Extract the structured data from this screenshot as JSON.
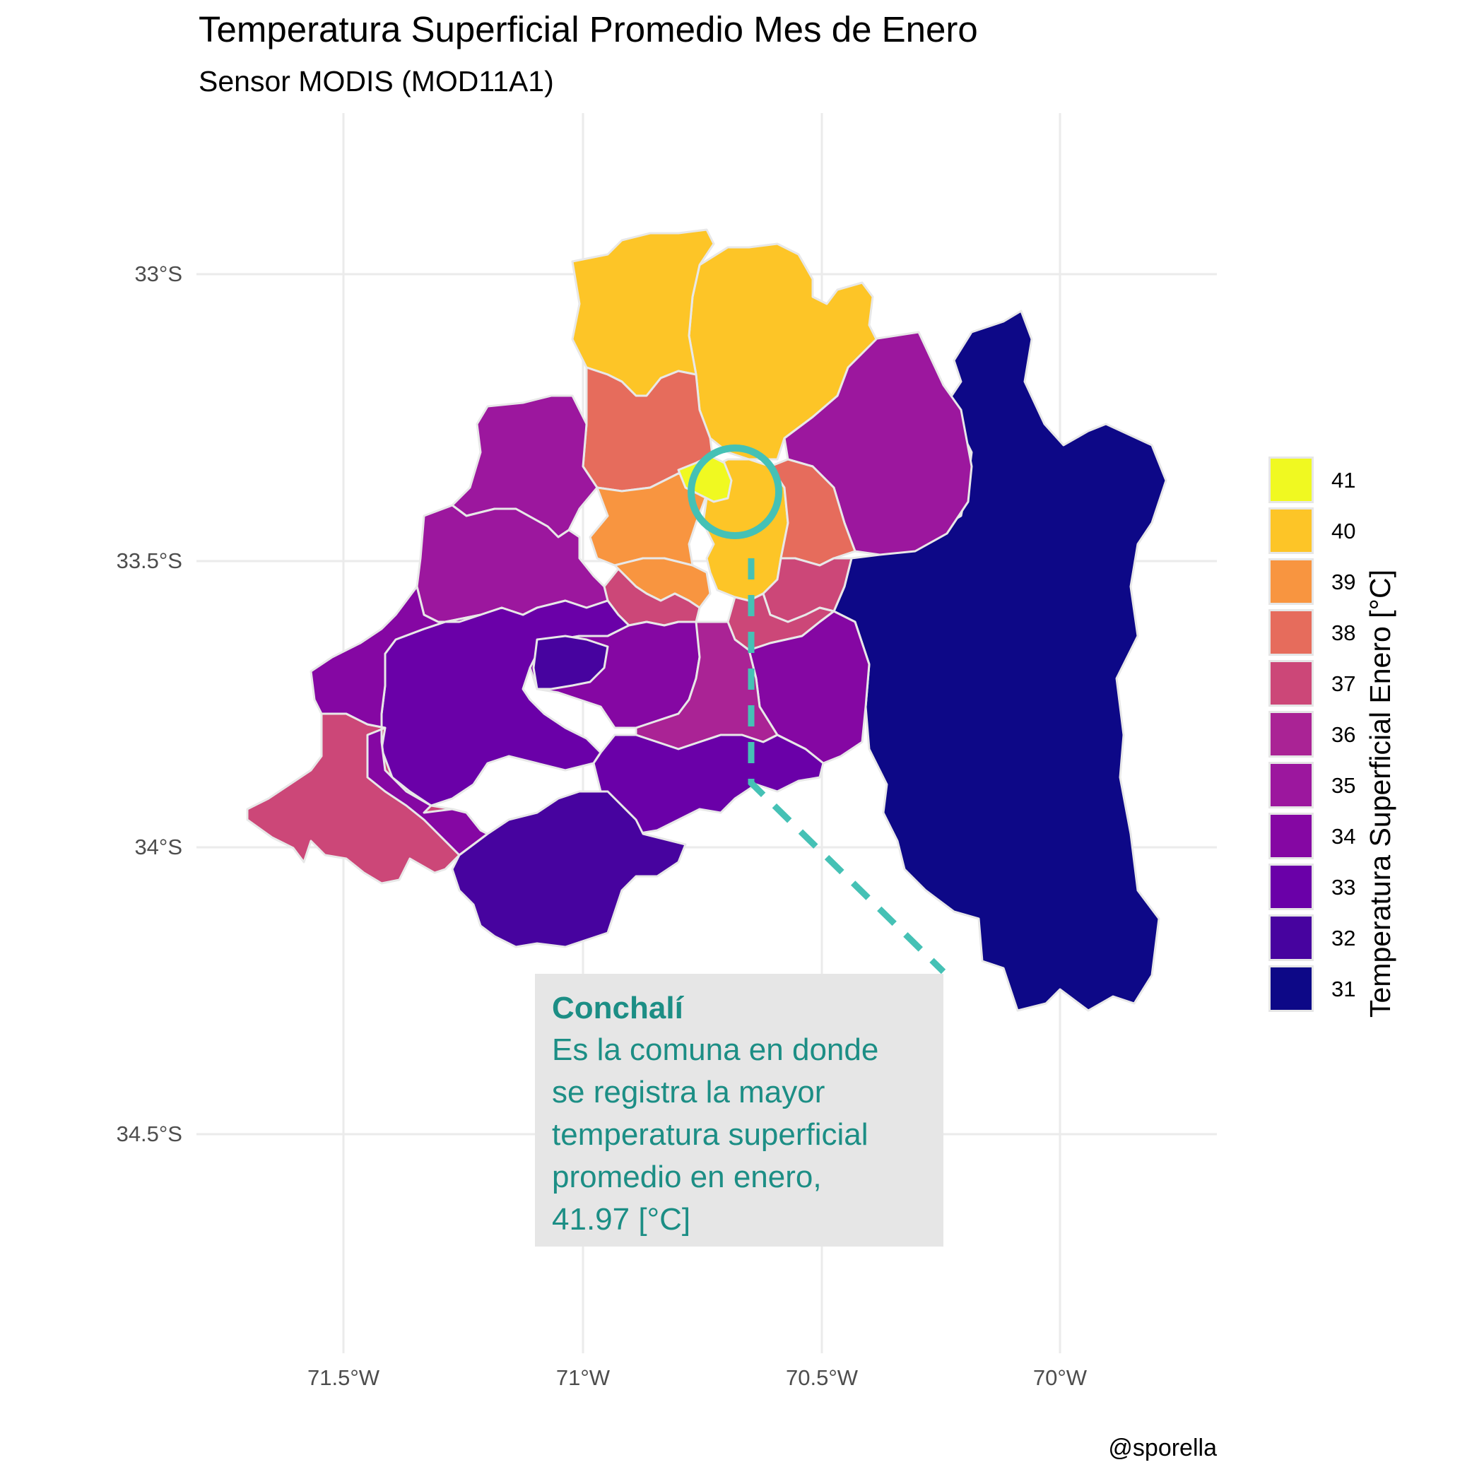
{
  "title": "Temperatura Superficial Promedio Mes de Enero",
  "subtitle": "Sensor MODIS (MOD11A1)",
  "caption": "@sporella",
  "axes": {
    "x_ticks": [
      "71.5°W",
      "71°W",
      "70.5°W",
      "70°W"
    ],
    "y_ticks": [
      "33°S",
      "33.5°S",
      "34°S",
      "34.5°S"
    ]
  },
  "legend": {
    "title": "Temperatura Superficial Enero [°C]",
    "items": [
      {
        "label": "41",
        "color": "#f0f921"
      },
      {
        "label": "40",
        "color": "#fdc527"
      },
      {
        "label": "39",
        "color": "#f89540"
      },
      {
        "label": "38",
        "color": "#e66c5c"
      },
      {
        "label": "37",
        "color": "#cc4778"
      },
      {
        "label": "36",
        "color": "#aa2395"
      },
      {
        "label": "35",
        "color": "#9c179e"
      },
      {
        "label": "34",
        "color": "#8507a3"
      },
      {
        "label": "33",
        "color": "#6a00a8"
      },
      {
        "label": "32",
        "color": "#47039f"
      },
      {
        "label": "31",
        "color": "#0d0887"
      }
    ]
  },
  "annotation": {
    "name": "Conchalí",
    "line1": "Es la comuna en donde",
    "line2": "se registra la mayor",
    "line3": "temperatura superficial",
    "line4": "promedio en enero,",
    "line5": "41.97 [°C]",
    "color": "#1c8e85",
    "highlight_color": "#45c1b5"
  },
  "colors": {
    "grid": "#ebebeb",
    "border": "#e8e8e8"
  }
}
